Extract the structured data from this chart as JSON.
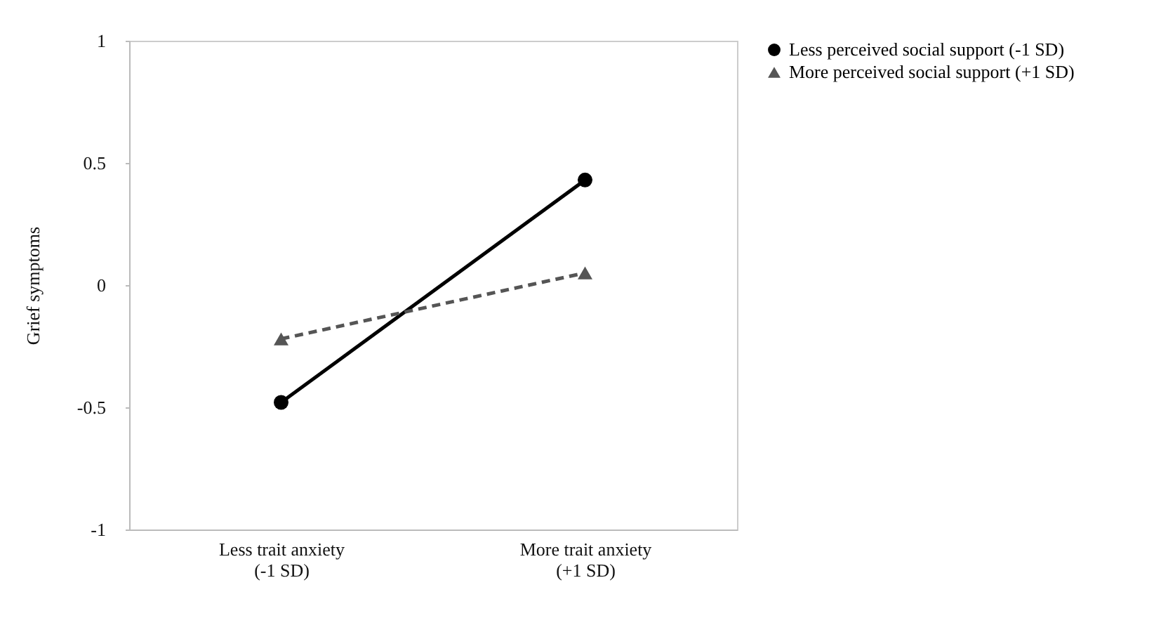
{
  "chart_data": {
    "type": "line",
    "ylabel": "Grief symptoms",
    "categories": [
      "Less trait anxiety (-1 SD)",
      "More trait anxiety (+1 SD)"
    ],
    "series": [
      {
        "name": "Less perceived social support (-1 SD)",
        "color": "#000000",
        "marker": "circle",
        "line_style": "solid",
        "values": [
          -0.48,
          0.43
        ]
      },
      {
        "name": "More perceived social support (+1 SD)",
        "color": "#555555",
        "marker": "triangle",
        "line_style": "dashed",
        "values": [
          -0.22,
          0.05
        ]
      }
    ],
    "ylim": [
      -1,
      1
    ],
    "yticks": [
      -1,
      -0.5,
      0,
      0.5,
      1
    ],
    "grid": false,
    "legend": "top right"
  }
}
